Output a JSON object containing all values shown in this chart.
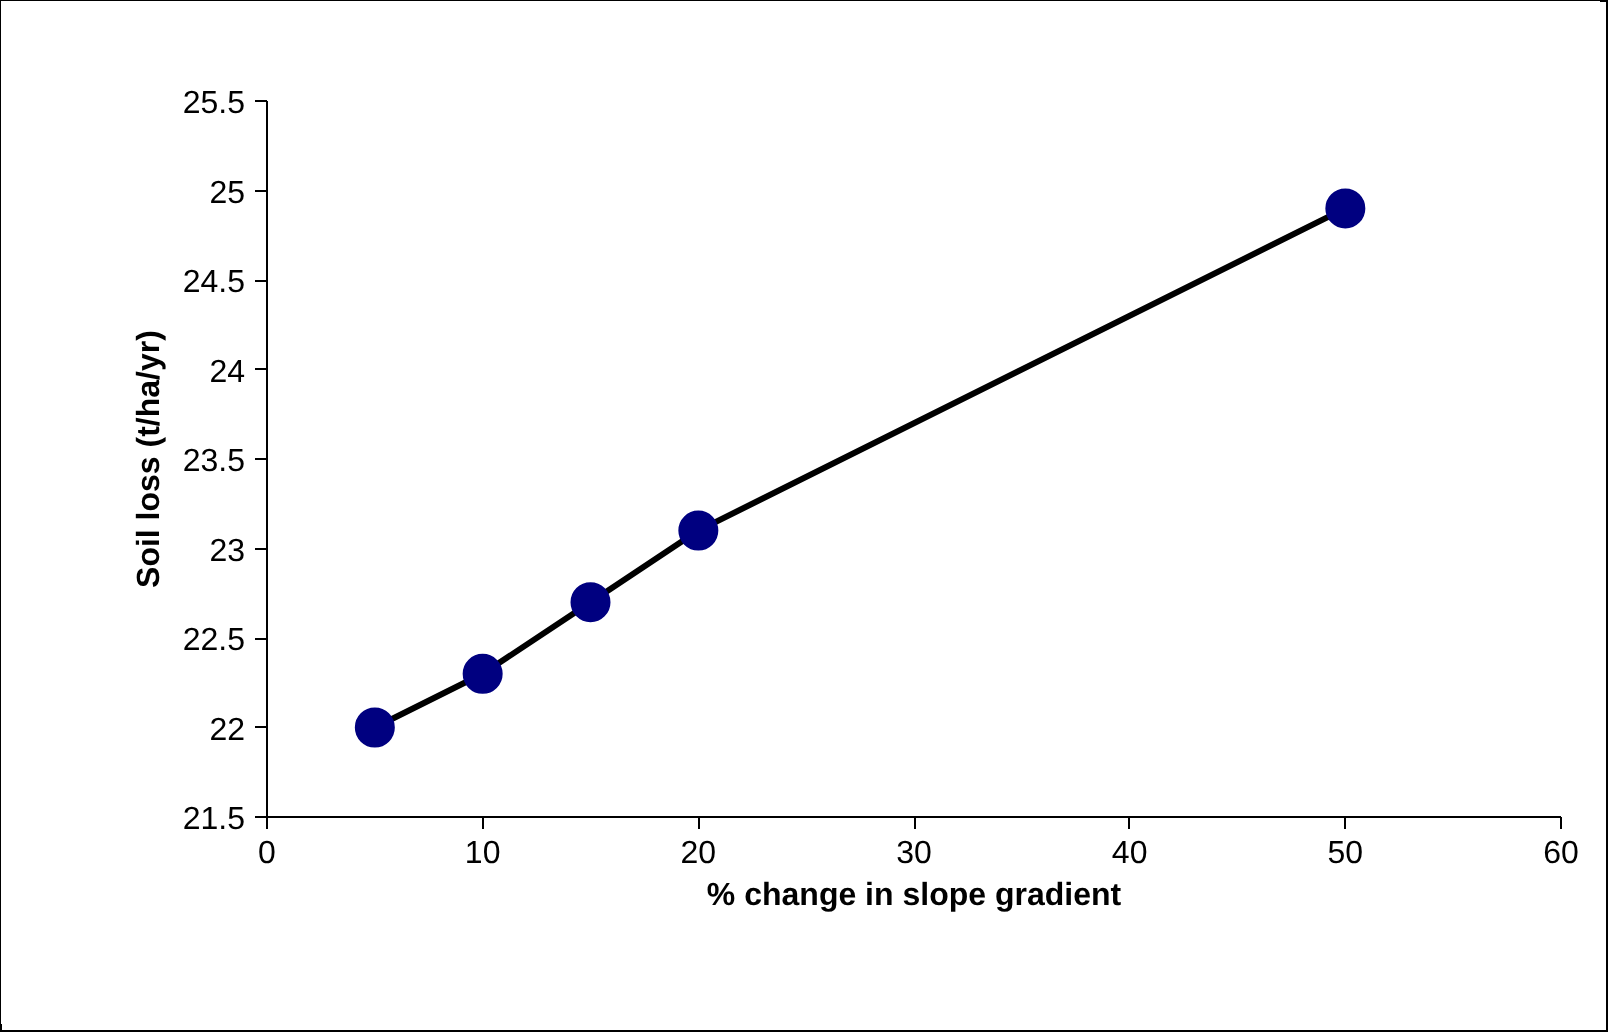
{
  "chart_data": {
    "type": "line",
    "xlabel": "% change in slope gradient",
    "ylabel": "Soil loss (t/ha/yr)",
    "x": [
      5,
      10,
      15,
      20,
      50
    ],
    "series": [
      {
        "color": "#000080",
        "values": [
          22.0,
          22.3,
          22.7,
          23.1,
          24.9
        ]
      }
    ],
    "xlim": [
      0,
      60
    ],
    "xticks": [
      0,
      10,
      20,
      30,
      40,
      50,
      60
    ],
    "ylim": [
      21.5,
      25.5
    ],
    "yticks": [
      21.5,
      22,
      22.5,
      23,
      23.5,
      24,
      24.5,
      25,
      25.5
    ],
    "grid": false,
    "marker": "circle",
    "line_style": "solid"
  }
}
